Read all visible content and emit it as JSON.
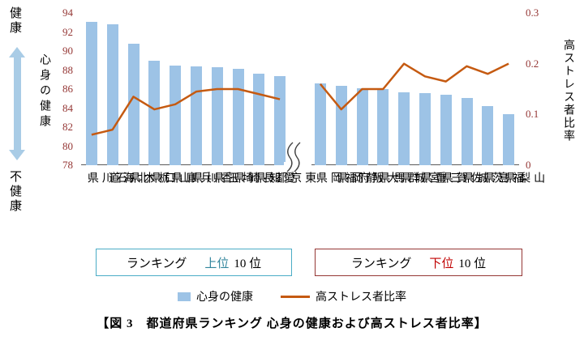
{
  "caption": "【図 3　都道府県ランキング 心身の健康および高ストレス者比率】",
  "left_labels": {
    "top": "健康",
    "bottom": "不健康",
    "axis_title": "心身の健康"
  },
  "right_axis_title": "高ストレス者比率",
  "legend": {
    "bar": "心身の健康",
    "line": "高ストレス者比率"
  },
  "ranking_boxes": [
    {
      "prefix": "ランキング",
      "rank": "上位",
      "suffix": "10 位"
    },
    {
      "prefix": "ランキング",
      "rank": "下位",
      "suffix": "10 位"
    }
  ],
  "chart_data": {
    "type": "bar",
    "subtype": "combo-bar-line-dual-axis",
    "left_axis": {
      "min": 78,
      "max": 94,
      "ticks": [
        "78",
        "80",
        "82",
        "84",
        "86",
        "88",
        "90",
        "92",
        "94"
      ],
      "label": "心身の健康"
    },
    "right_axis": {
      "min": 0,
      "max": 0.3,
      "ticks": [
        "0",
        "0.1",
        "0.2",
        "0.3"
      ],
      "label": "高ストレス者比率"
    },
    "series": [
      {
        "name": "心身の健康",
        "type": "bar",
        "axis": "left"
      },
      {
        "name": "高ストレス者比率",
        "type": "line",
        "axis": "right"
      }
    ],
    "groups": [
      {
        "name": "ランキング上位10位",
        "categories": [
          "石川県",
          "北海道",
          "栃木県",
          "山口県",
          "兵庫県",
          "香川県",
          "埼玉県",
          "長崎県",
          "愛知県",
          "東京都"
        ],
        "bar_values": [
          93.1,
          92.8,
          90.8,
          89.0,
          88.5,
          88.4,
          88.3,
          88.1,
          87.6,
          87.4
        ],
        "line_values": [
          0.06,
          0.07,
          0.135,
          0.11,
          0.12,
          0.145,
          0.15,
          0.15,
          0.14,
          0.13
        ]
      },
      {
        "name": "ランキング下位10位",
        "categories": [
          "福岡県",
          "静岡県",
          "大阪府",
          "群馬県",
          "宮城県",
          "三重県",
          "佐賀県",
          "茨城県",
          "福島県",
          "山梨県"
        ],
        "bar_values": [
          86.6,
          86.3,
          86.1,
          86.0,
          85.7,
          85.6,
          85.4,
          85.1,
          84.2,
          83.4
        ],
        "line_values": [
          0.16,
          0.11,
          0.15,
          0.15,
          0.2,
          0.175,
          0.165,
          0.195,
          0.18,
          0.2
        ]
      }
    ]
  },
  "colors": {
    "bar": "#9dc3e6",
    "line": "#c55a11",
    "axis_text": "#953735",
    "arrow": "#a9cce6",
    "top_box_border": "#4bacc6",
    "top_rank_text": "#31859c",
    "bottom_box_border": "#953735",
    "bottom_rank_text": "#c00000"
  }
}
